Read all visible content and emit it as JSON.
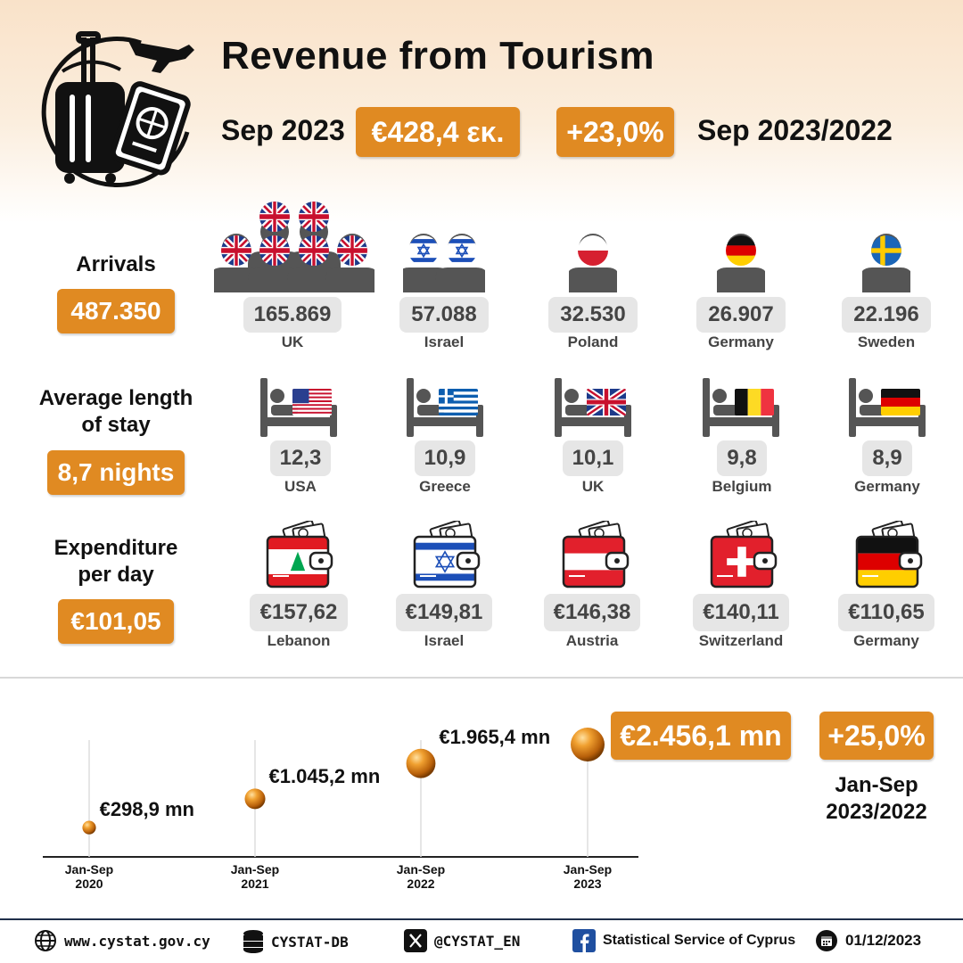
{
  "header": {
    "title": "Revenue from Tourism",
    "period": "Sep 2023",
    "revenue": "€428,4 εκ.",
    "change": "+23,0%",
    "comparison": "Sep 2023/2022"
  },
  "arrivals": {
    "label": "Arrivals",
    "total": "487.350",
    "items": [
      {
        "value": "165.869",
        "country": "UK",
        "flag": "uk-flag-icon"
      },
      {
        "value": "57.088",
        "country": "Israel",
        "flag": "israel-flag-icon"
      },
      {
        "value": "32.530",
        "country": "Poland",
        "flag": "poland-flag-icon"
      },
      {
        "value": "26.907",
        "country": "Germany",
        "flag": "germany-flag-icon"
      },
      {
        "value": "22.196",
        "country": "Sweden",
        "flag": "sweden-flag-icon"
      }
    ]
  },
  "stay": {
    "label_line1": "Average length",
    "label_line2": "of stay",
    "total": "8,7 nights",
    "items": [
      {
        "value": "12,3",
        "country": "USA",
        "flag": "usa-flag-icon"
      },
      {
        "value": "10,9",
        "country": "Greece",
        "flag": "greece-flag-icon"
      },
      {
        "value": "10,1",
        "country": "UK",
        "flag": "uk-flag-icon"
      },
      {
        "value": "9,8",
        "country": "Belgium",
        "flag": "belgium-flag-icon"
      },
      {
        "value": "8,9",
        "country": "Germany",
        "flag": "germany-flag-icon"
      }
    ]
  },
  "expenditure": {
    "label_line1": "Expenditure",
    "label_line2": "per day",
    "total": "€101,05",
    "items": [
      {
        "value": "€157,62",
        "country": "Lebanon",
        "flag": "lebanon-flag-icon"
      },
      {
        "value": "€149,81",
        "country": "Israel",
        "flag": "israel-flag-icon"
      },
      {
        "value": "€146,38",
        "country": "Austria",
        "flag": "austria-flag-icon"
      },
      {
        "value": "€140,11",
        "country": "Switzerland",
        "flag": "switzerland-flag-icon"
      },
      {
        "value": "€110,65",
        "country": "Germany",
        "flag": "germany-flag-icon"
      }
    ]
  },
  "chart_data": {
    "type": "scatter",
    "x": [
      "Jan-Sep 2020",
      "Jan-Sep 2021",
      "Jan-Sep 2022",
      "Jan-Sep 2023"
    ],
    "values": [
      298.9,
      1045.2,
      1965.4,
      2456.1
    ],
    "value_labels": [
      "€298,9 mn",
      "€1.045,2 mn",
      "€1.965,4 mn",
      "€2.456,1 mn"
    ],
    "tick_labels": [
      {
        "line1": "Jan-Sep",
        "line2": "2020"
      },
      {
        "line1": "Jan-Sep",
        "line2": "2021"
      },
      {
        "line1": "Jan-Sep",
        "line2": "2022"
      },
      {
        "line1": "Jan-Sep",
        "line2": "2023"
      }
    ],
    "change": "+25,0%",
    "change_label_line1": "Jan-Sep",
    "change_label_line2": "2023/2022"
  },
  "footer": {
    "website": "www.cystat.gov.cy",
    "database": "CYSTAT-DB",
    "twitter": "@CYSTAT_EN",
    "facebook": "Statistical Service of Cyprus",
    "date": "01/12/2023"
  },
  "colors": {
    "accent": "#e08a22",
    "pill": "#e6e6e6",
    "figure": "#555555"
  }
}
